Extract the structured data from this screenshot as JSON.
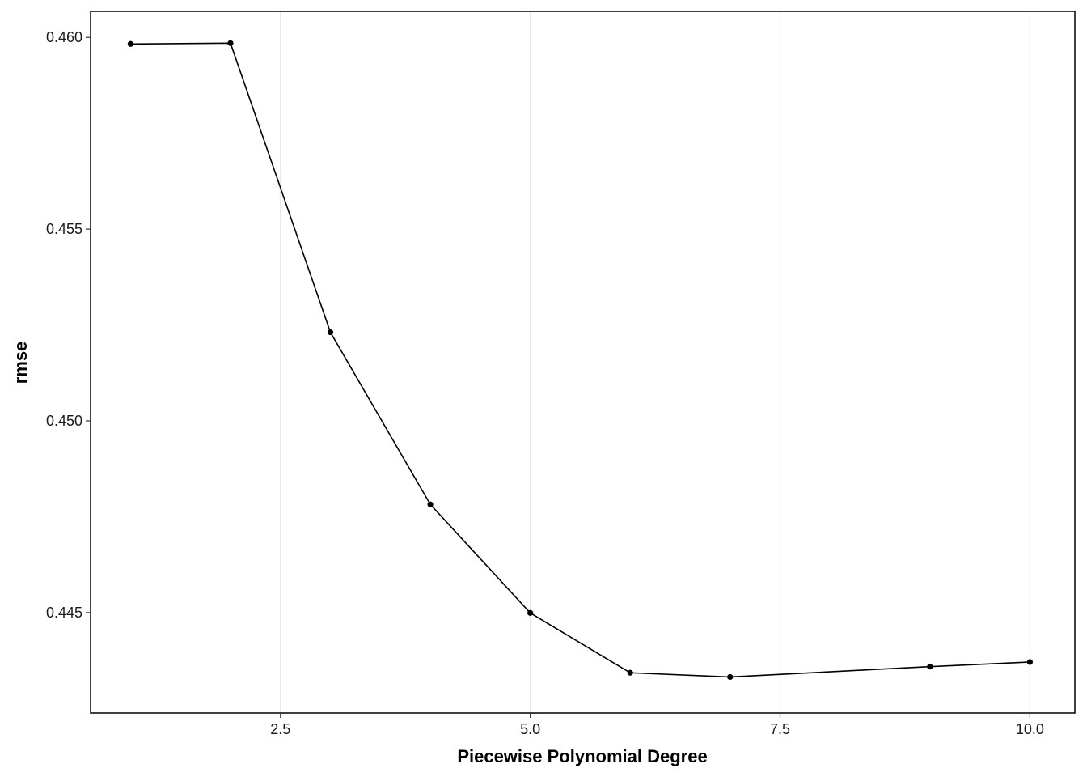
{
  "chart_data": {
    "type": "line",
    "title": "",
    "xlabel": "Piecewise Polynomial Degree",
    "ylabel": "rmse",
    "xlim": [
      0.6,
      10.45
    ],
    "ylim": [
      0.44238,
      0.46068
    ],
    "x_ticks": [
      2.5,
      5.0,
      7.5,
      10.0
    ],
    "x_tick_labels": [
      "2.5",
      "5.0",
      "7.5",
      "10.0"
    ],
    "y_ticks": [
      0.445,
      0.45,
      0.455,
      0.46
    ],
    "y_tick_labels": [
      "0.445",
      "0.450",
      "0.455",
      "0.460"
    ],
    "grid": {
      "vertical_major": true,
      "horizontal": false
    },
    "legend": "none",
    "series": [
      {
        "x": [
          1,
          2,
          3,
          4,
          5,
          6,
          7,
          9,
          10
        ],
        "y": [
          0.45983,
          0.45985,
          0.45231,
          0.44782,
          0.44499,
          0.44343,
          0.44332,
          0.44359,
          0.44371
        ]
      }
    ],
    "colors": {
      "line": "#000000",
      "point": "#000000",
      "grid": "#e5e5e5",
      "frame": "#000000"
    }
  }
}
